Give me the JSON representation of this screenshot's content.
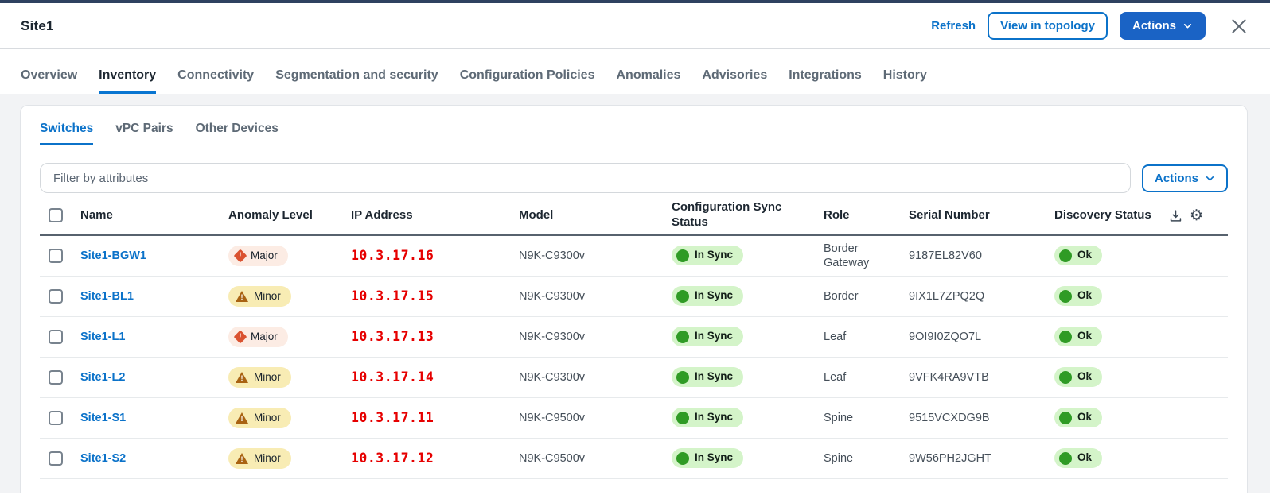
{
  "titlebar": {
    "title": "Site1",
    "refresh": "Refresh",
    "view_in_topology": "View in topology",
    "actions": "Actions"
  },
  "tabs": {
    "items": [
      "Overview",
      "Inventory",
      "Connectivity",
      "Segmentation and security",
      "Configuration Policies",
      "Anomalies",
      "Advisories",
      "Integrations",
      "History"
    ],
    "active": "Inventory"
  },
  "subtabs": {
    "items": [
      "Switches",
      "vPC Pairs",
      "Other Devices"
    ],
    "active": "Switches"
  },
  "toolbar": {
    "filter_placeholder": "Filter by attributes",
    "actions": "Actions"
  },
  "table": {
    "columns": [
      "Name",
      "Anomaly Level",
      "IP Address",
      "Model",
      "Configuration Sync Status",
      "Role",
      "Serial Number",
      "Discovery Status"
    ],
    "rows": [
      {
        "name": "Site1-BGW1",
        "anomaly": "Major",
        "ip": "10.3.17.16",
        "model": "N9K-C9300v",
        "sync": "In Sync",
        "role": "Border Gateway",
        "serial": "9187EL82V60",
        "discovery": "Ok"
      },
      {
        "name": "Site1-BL1",
        "anomaly": "Minor",
        "ip": "10.3.17.15",
        "model": "N9K-C9300v",
        "sync": "In Sync",
        "role": "Border",
        "serial": "9IX1L7ZPQ2Q",
        "discovery": "Ok"
      },
      {
        "name": "Site1-L1",
        "anomaly": "Major",
        "ip": "10.3.17.13",
        "model": "N9K-C9300v",
        "sync": "In Sync",
        "role": "Leaf",
        "serial": "9OI9I0ZQO7L",
        "discovery": "Ok"
      },
      {
        "name": "Site1-L2",
        "anomaly": "Minor",
        "ip": "10.3.17.14",
        "model": "N9K-C9300v",
        "sync": "In Sync",
        "role": "Leaf",
        "serial": "9VFK4RA9VTB",
        "discovery": "Ok"
      },
      {
        "name": "Site1-S1",
        "anomaly": "Minor",
        "ip": "10.3.17.11",
        "model": "N9K-C9500v",
        "sync": "In Sync",
        "role": "Spine",
        "serial": "9515VCXDG9B",
        "discovery": "Ok"
      },
      {
        "name": "Site1-S2",
        "anomaly": "Minor",
        "ip": "10.3.17.12",
        "model": "N9K-C9500v",
        "sync": "In Sync",
        "role": "Spine",
        "serial": "9W56PH2JGHT",
        "discovery": "Ok"
      }
    ]
  },
  "colors": {
    "navy": "#2e4160",
    "accent_blue": "#0b72c9",
    "button_blue": "#1a63c5",
    "ip_red": "#e60000",
    "major_bg": "#fcece4",
    "major_icon": "#da5230",
    "minor_bg": "#f8ecb4",
    "minor_icon": "#a96312",
    "status_bg": "#d4f4c9",
    "status_dot": "#2f9b25"
  }
}
